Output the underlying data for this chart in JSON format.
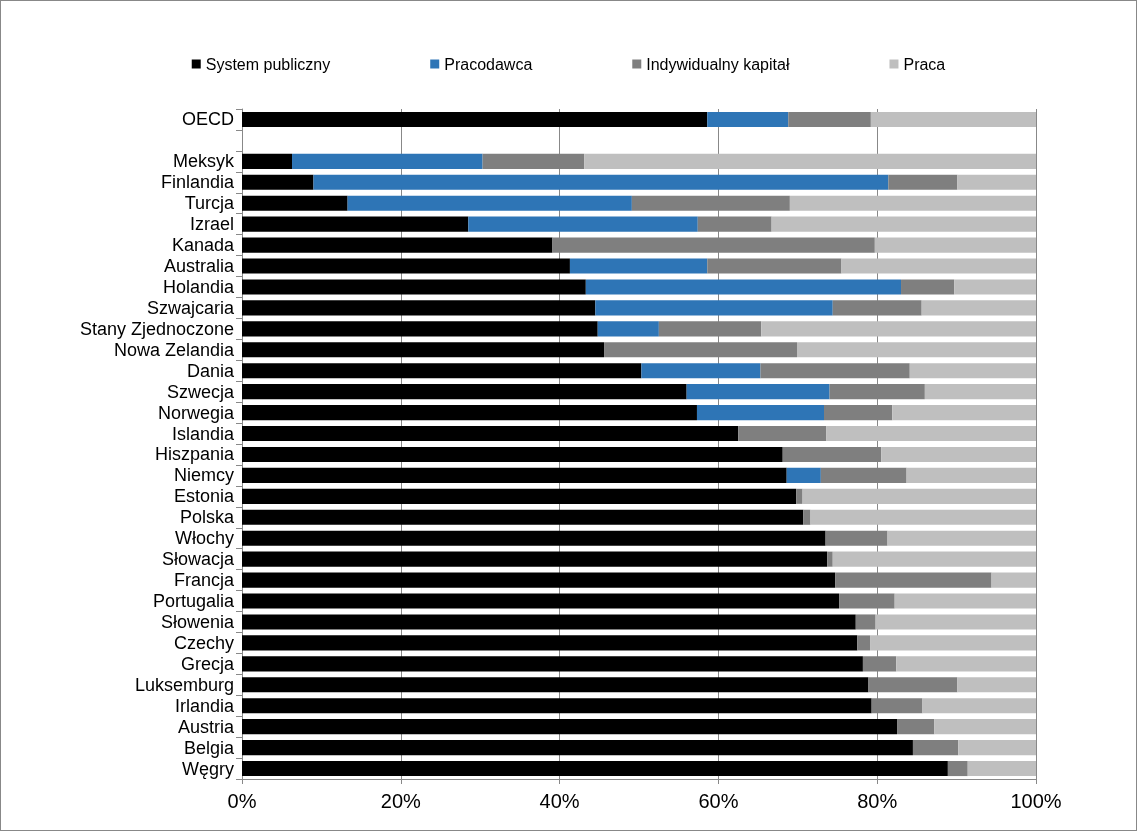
{
  "chart_data": {
    "type": "bar",
    "orientation": "horizontal",
    "stacked": true,
    "categories": [
      "OECD",
      null,
      "Meksyk",
      "Finlandia",
      "Turcja",
      "Izrael",
      "Kanada",
      "Australia",
      "Holandia",
      "Szwajcaria",
      "Stany Zjednoczone",
      "Nowa Zelandia",
      "Dania",
      "Szwecja",
      "Norwegia",
      "Islandia",
      "Hiszpania",
      "Niemcy",
      "Estonia",
      "Polska",
      "Włochy",
      "Słowacja",
      "Francja",
      "Portugalia",
      "Słowenia",
      "Czechy",
      "Grecja",
      "Luksemburg",
      "Irlandia",
      "Austria",
      "Belgia",
      "Węgry"
    ],
    "series": [
      {
        "name": "System publiczny",
        "color": "#000000",
        "values": [
          58.6,
          null,
          6.3,
          9.0,
          13.3,
          28.5,
          39.1,
          41.3,
          43.3,
          44.5,
          44.8,
          45.6,
          50.3,
          56.0,
          57.3,
          62.5,
          68.1,
          68.6,
          69.8,
          70.7,
          73.5,
          73.7,
          74.7,
          75.2,
          77.3,
          77.5,
          78.2,
          78.9,
          79.3,
          82.5,
          84.5,
          88.9
        ]
      },
      {
        "name": "Pracodawca",
        "color": "#2e75b6",
        "values": [
          10.2,
          null,
          24.0,
          72.4,
          35.8,
          28.9,
          0,
          17.3,
          39.7,
          29.9,
          7.7,
          0,
          15.0,
          18.0,
          16.0,
          0,
          0,
          4.3,
          0,
          0,
          0,
          0,
          0,
          0,
          0,
          0,
          0,
          0,
          0,
          0,
          0,
          0
        ]
      },
      {
        "name": "Indywidualny kapitał",
        "color": "#7f7f7f",
        "values": [
          10.4,
          null,
          12.8,
          8.7,
          19.9,
          9.3,
          40.6,
          16.9,
          6.7,
          11.2,
          12.9,
          24.3,
          18.8,
          12.0,
          8.6,
          11.1,
          12.4,
          10.8,
          0.8,
          0.9,
          7.8,
          0.7,
          19.7,
          7.0,
          2.5,
          1.6,
          4.2,
          11.2,
          6.4,
          4.7,
          5.7,
          2.5
        ]
      },
      {
        "name": "Praca",
        "color": "#bfbfbf",
        "values": [
          20.8,
          null,
          56.9,
          9.9,
          31.0,
          33.3,
          20.3,
          24.5,
          10.3,
          14.4,
          34.6,
          30.1,
          15.9,
          14.0,
          18.1,
          26.4,
          19.5,
          16.3,
          29.4,
          28.4,
          18.7,
          25.6,
          5.6,
          17.8,
          20.2,
          20.9,
          17.6,
          9.9,
          14.3,
          12.8,
          9.8,
          8.6
        ]
      }
    ],
    "xlim": [
      0,
      100
    ],
    "xticks": [
      {
        "value": 0,
        "label": "0%"
      },
      {
        "value": 20,
        "label": "20%"
      },
      {
        "value": 40,
        "label": "40%"
      },
      {
        "value": 60,
        "label": "60%"
      },
      {
        "value": 80,
        "label": "80%"
      },
      {
        "value": 100,
        "label": "100%"
      }
    ],
    "grid": "x",
    "legend": "top"
  }
}
